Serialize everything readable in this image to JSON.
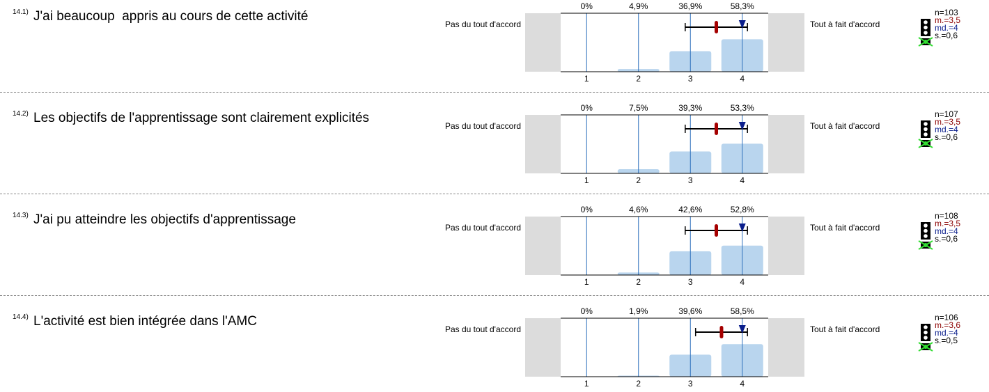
{
  "chart_data": [
    {
      "type": "bar",
      "question_number": "14.1)",
      "title": "J'ai beaucoup  appris au cours de cette activité",
      "left_label": "Pas du tout d'accord",
      "right_label": "Tout à fait d'accord",
      "xlim": [
        0.5,
        4.5
      ],
      "xticks": [
        1,
        2,
        3,
        4
      ],
      "ylim": [
        0,
        100
      ],
      "color": "#b9d5ee",
      "values": [
        0,
        4.9,
        36.9,
        58.3
      ],
      "value_labels": [
        "0%",
        "4,9%",
        "36,9%",
        "58,3%"
      ],
      "n": {
        "value": 103,
        "label": "n=103"
      },
      "mean": {
        "value": 3.5,
        "label": "m.=3,5"
      },
      "median": {
        "value": 4,
        "label": "md.=4"
      },
      "sd": {
        "value": 0.6,
        "label": "s.=0,6"
      }
    },
    {
      "type": "bar",
      "question_number": "14.2)",
      "title": "Les objectifs de l'apprentissage sont clairement explicités",
      "left_label": "Pas du tout d'accord",
      "right_label": "Tout à fait d'accord",
      "xlim": [
        0.5,
        4.5
      ],
      "xticks": [
        1,
        2,
        3,
        4
      ],
      "ylim": [
        0,
        100
      ],
      "color": "#b9d5ee",
      "values": [
        0,
        7.5,
        39.3,
        53.3
      ],
      "value_labels": [
        "0%",
        "7,5%",
        "39,3%",
        "53,3%"
      ],
      "n": {
        "value": 107,
        "label": "n=107"
      },
      "mean": {
        "value": 3.5,
        "label": "m.=3,5"
      },
      "median": {
        "value": 4,
        "label": "md.=4"
      },
      "sd": {
        "value": 0.6,
        "label": "s.=0,6"
      }
    },
    {
      "type": "bar",
      "question_number": "14.3)",
      "title": "J'ai pu atteindre les objectifs d'apprentissage",
      "left_label": "Pas du tout d'accord",
      "right_label": "Tout à fait d'accord",
      "xlim": [
        0.5,
        4.5
      ],
      "xticks": [
        1,
        2,
        3,
        4
      ],
      "ylim": [
        0,
        100
      ],
      "color": "#b9d5ee",
      "values": [
        0,
        4.6,
        42.6,
        52.8
      ],
      "value_labels": [
        "0%",
        "4,6%",
        "42,6%",
        "52,8%"
      ],
      "n": {
        "value": 108,
        "label": "n=108"
      },
      "mean": {
        "value": 3.5,
        "label": "m.=3,5"
      },
      "median": {
        "value": 4,
        "label": "md.=4"
      },
      "sd": {
        "value": 0.6,
        "label": "s.=0,6"
      }
    },
    {
      "type": "bar",
      "question_number": "14.4)",
      "title": "L'activité est bien intégrée dans l'AMC",
      "left_label": "Pas du tout d'accord",
      "right_label": "Tout à fait d'accord",
      "xlim": [
        0.5,
        4.5
      ],
      "xticks": [
        1,
        2,
        3,
        4
      ],
      "ylim": [
        0,
        100
      ],
      "color": "#b9d5ee",
      "values": [
        0,
        1.9,
        39.6,
        58.5
      ],
      "value_labels": [
        "0%",
        "1,9%",
        "39,6%",
        "58,5%"
      ],
      "n": {
        "value": 106,
        "label": "n=106"
      },
      "mean": {
        "value": 3.6,
        "label": "m.=3,6"
      },
      "median": {
        "value": 4,
        "label": "md.=4"
      },
      "sd": {
        "value": 0.5,
        "label": "s.=0,5"
      }
    }
  ]
}
